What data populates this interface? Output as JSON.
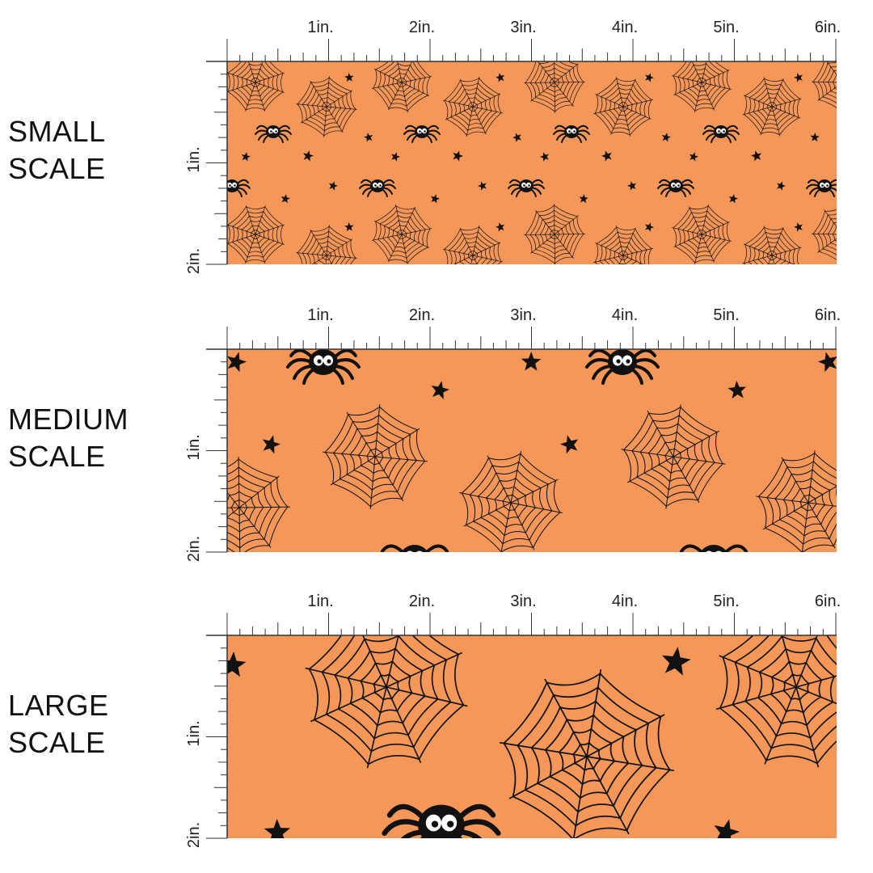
{
  "inch_labels": [
    "1in.",
    "2in.",
    "3in.",
    "4in.",
    "5in.",
    "6in."
  ],
  "vertical_labels": [
    "1in.",
    "2in."
  ],
  "fabric_color": "#F59758",
  "ink_color": "#111111",
  "sections": [
    {
      "id": "small",
      "label_line1": "SMALL",
      "label_line2": "SCALE",
      "motif_scale": 0.5
    },
    {
      "id": "medium",
      "label_line1": "MEDIUM",
      "label_line2": "SCALE",
      "motif_scale": 1.0
    },
    {
      "id": "large",
      "label_line1": "LARGE",
      "label_line2": "SCALE",
      "motif_scale": 1.6
    }
  ],
  "motif_icons": [
    "spider-web-icon",
    "spider-icon",
    "star-icon"
  ]
}
